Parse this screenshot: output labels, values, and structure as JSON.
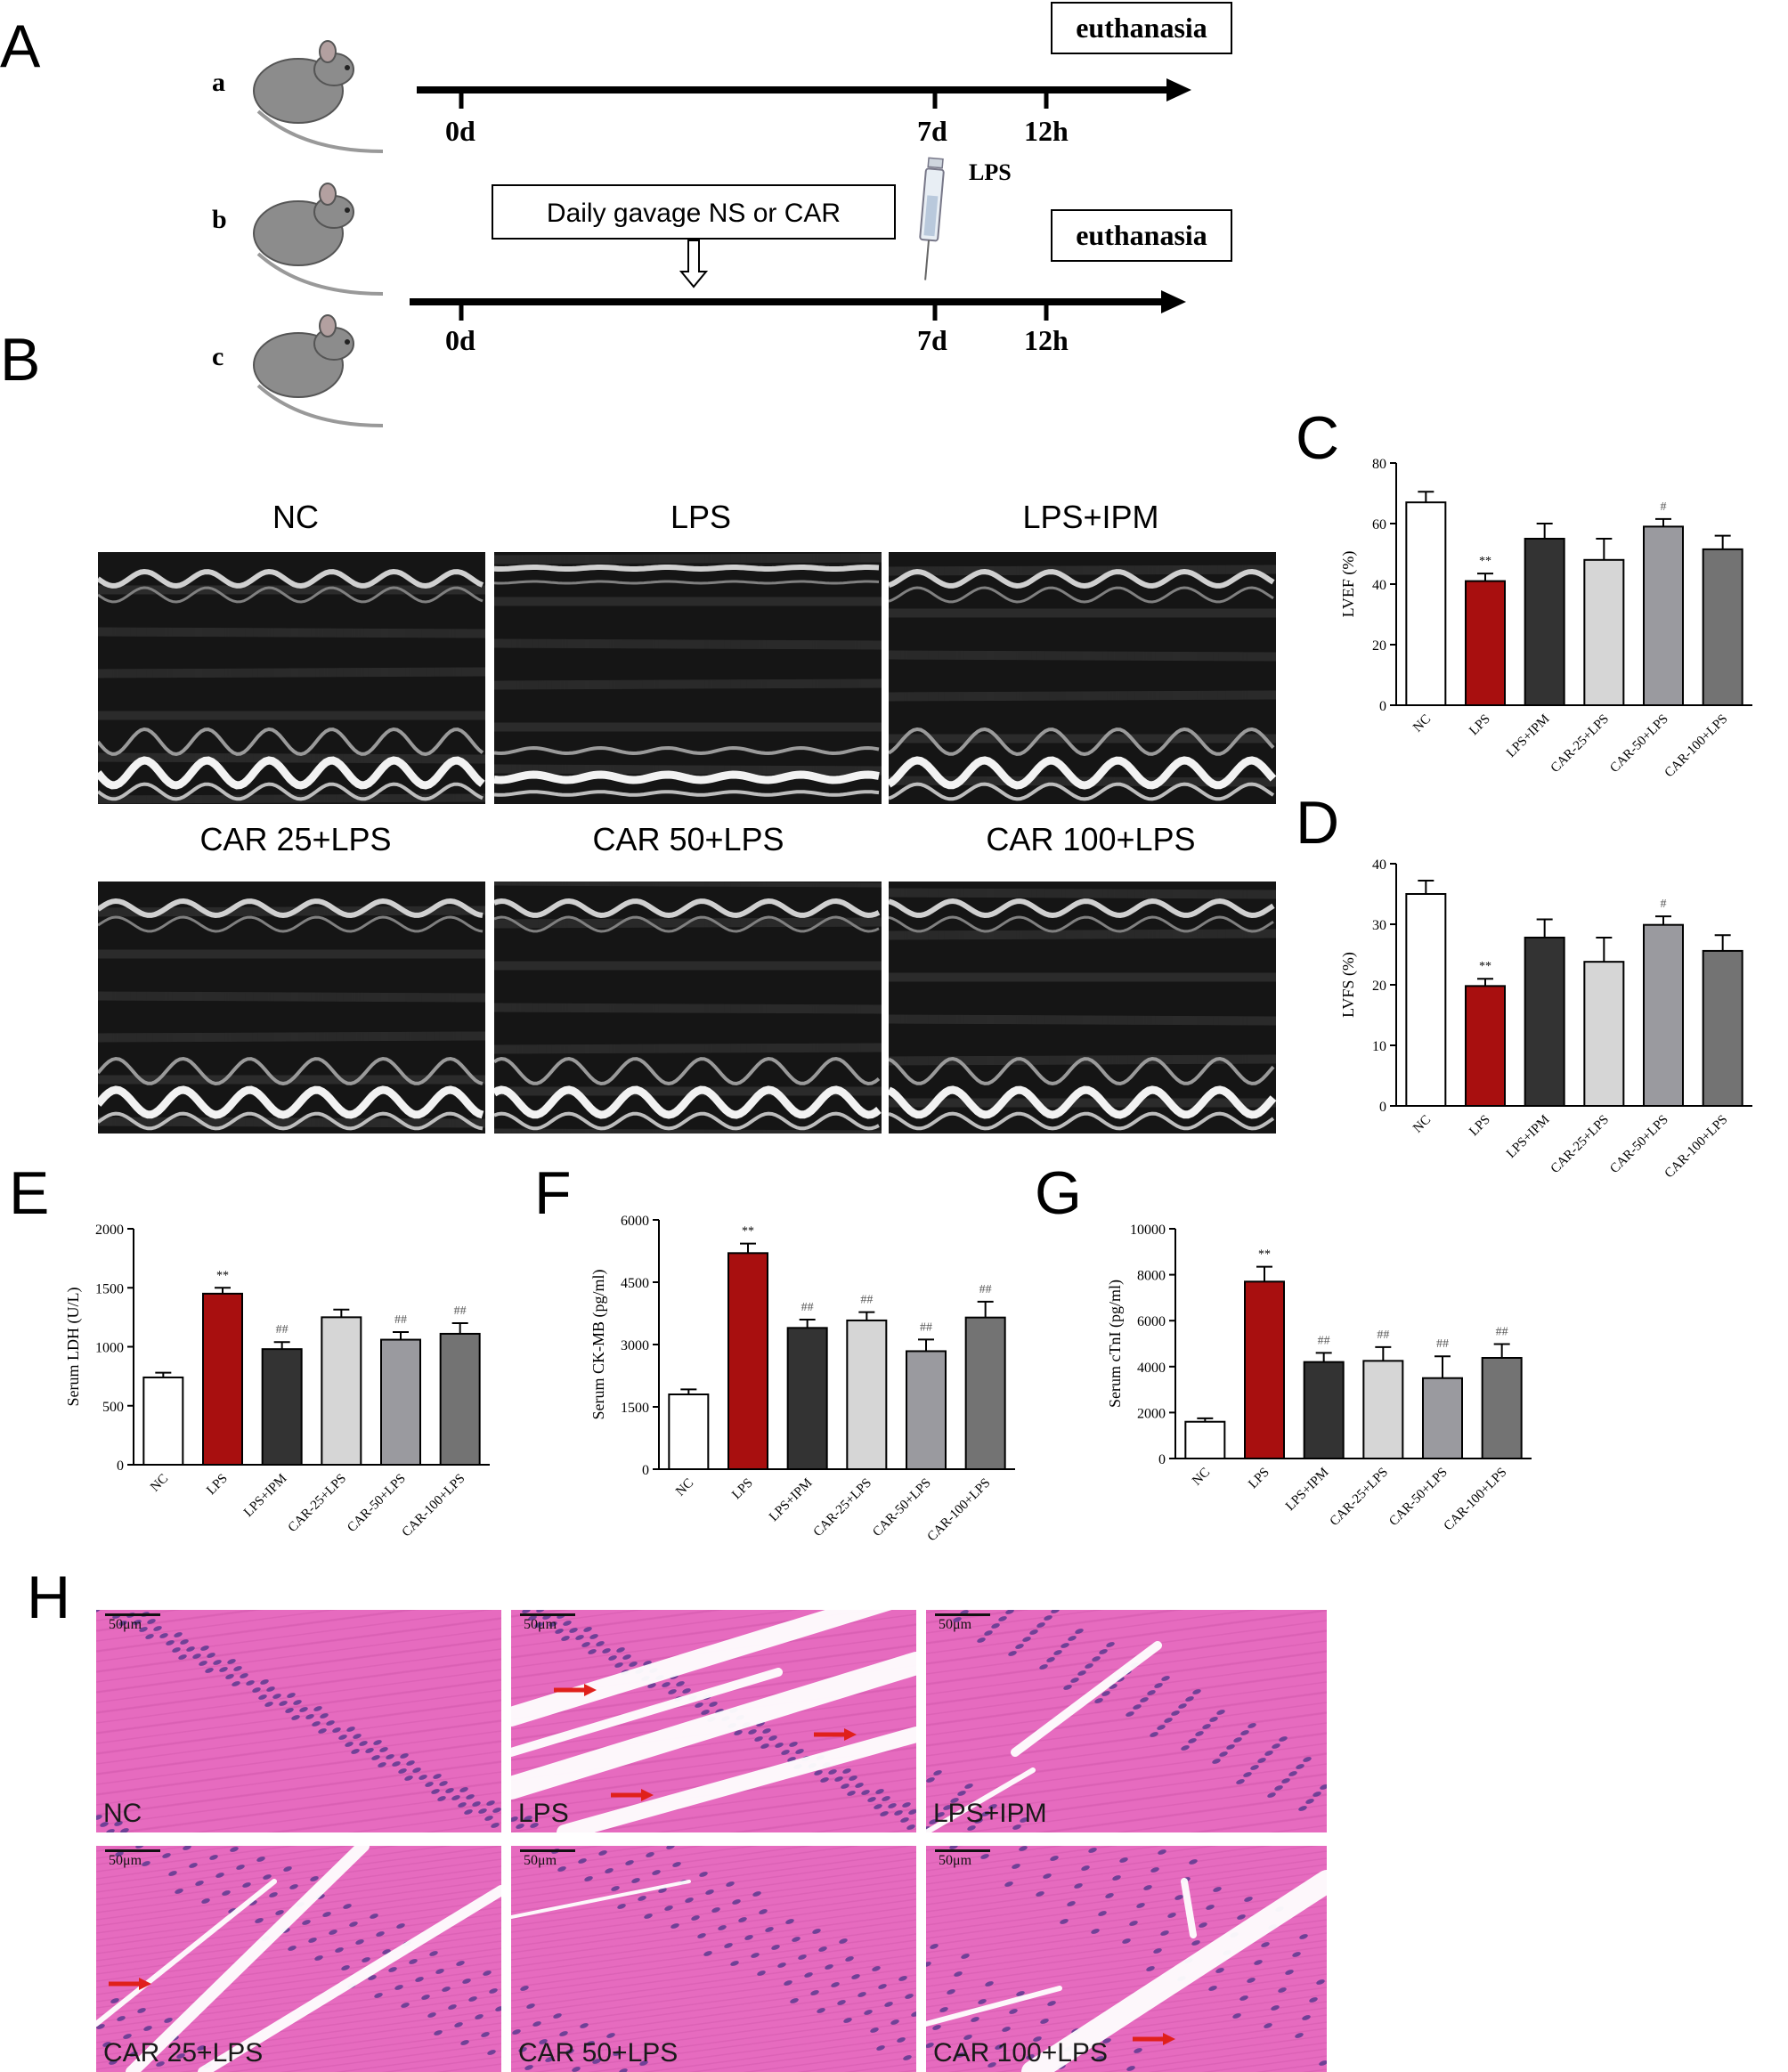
{
  "panels": {
    "A": "A",
    "B": "B",
    "C": "C",
    "D": "D",
    "E": "E",
    "F": "F",
    "G": "G",
    "H": "H"
  },
  "timeline": {
    "row_labels": [
      "a",
      "b",
      "c"
    ],
    "euthanasia": "euthanasia",
    "gavage_box": "Daily gavage NS or CAR",
    "lps_label": "LPS",
    "ticks": [
      "0d",
      "7d",
      "12h"
    ]
  },
  "echo": {
    "labels": [
      "NC",
      "LPS",
      "LPS+IPM",
      "CAR 25+LPS",
      "CAR 50+LPS",
      "CAR 100+LPS"
    ]
  },
  "histology": {
    "labels": [
      "NC",
      "LPS",
      "LPS+IPM",
      "CAR 25+LPS",
      "CAR 50+LPS",
      "CAR 100+LPS"
    ],
    "scale_bar": "50μm"
  },
  "colors": {
    "NC": "#ffffff",
    "LPS": "#a80f0f",
    "LPS+IPM": "#333333",
    "CAR-25+LPS": "#d6d6d6",
    "CAR-50+LPS": "#9a9a9f",
    "CAR-100+LPS": "#737373",
    "arrow": "#e0201b",
    "he_bg": "#e66bbf"
  },
  "chart_data": [
    {
      "id": "C",
      "type": "bar",
      "ylabel": "LVEF (%)",
      "ylim": [
        0,
        80
      ],
      "yticks": [
        0,
        20,
        40,
        60,
        80
      ],
      "categories": [
        "NC",
        "LPS",
        "LPS+IPM",
        "CAR-25+LPS",
        "CAR-50+LPS",
        "CAR-100+LPS"
      ],
      "values": [
        67,
        41,
        55,
        48,
        59,
        51.5
      ],
      "errors": [
        3.5,
        2.5,
        5,
        7,
        2.5,
        4.5
      ],
      "annotations": [
        "",
        "**",
        "",
        "",
        "#",
        ""
      ]
    },
    {
      "id": "D",
      "type": "bar",
      "ylabel": "LVFS (%)",
      "ylim": [
        0,
        40
      ],
      "yticks": [
        0,
        10,
        20,
        30,
        40
      ],
      "categories": [
        "NC",
        "LPS",
        "LPS+IPM",
        "CAR-25+LPS",
        "CAR-50+LPS",
        "CAR-100+LPS"
      ],
      "values": [
        35,
        19.8,
        27.8,
        23.8,
        29.9,
        25.6
      ],
      "errors": [
        2.2,
        1.2,
        3,
        4,
        1.4,
        2.6
      ],
      "annotations": [
        "",
        "**",
        "",
        "",
        "#",
        ""
      ]
    },
    {
      "id": "E",
      "type": "bar",
      "ylabel": "Serum LDH (U/L)",
      "ylim": [
        0,
        2000
      ],
      "yticks": [
        0,
        500,
        1000,
        1500,
        2000
      ],
      "categories": [
        "NC",
        "LPS",
        "LPS+IPM",
        "CAR-25+LPS",
        "CAR-50+LPS",
        "CAR-100+LPS"
      ],
      "values": [
        740,
        1450,
        980,
        1250,
        1060,
        1110
      ],
      "errors": [
        40,
        50,
        60,
        65,
        65,
        90
      ],
      "annotations": [
        "",
        "**",
        "##",
        "",
        "##",
        "##"
      ]
    },
    {
      "id": "F",
      "type": "bar",
      "ylabel": "Serum CK-MB (pg/ml)",
      "ylim": [
        0,
        6000
      ],
      "yticks": [
        0,
        1500,
        3000,
        4500,
        6000
      ],
      "categories": [
        "NC",
        "LPS",
        "LPS+IPM",
        "CAR-25+LPS",
        "CAR-50+LPS",
        "CAR-100+LPS"
      ],
      "values": [
        1800,
        5200,
        3400,
        3580,
        2840,
        3650
      ],
      "errors": [
        120,
        230,
        200,
        200,
        280,
        380
      ],
      "annotations": [
        "",
        "**",
        "##",
        "##",
        "##",
        "##"
      ]
    },
    {
      "id": "G",
      "type": "bar",
      "ylabel": "Serum cTnI (pg/ml)",
      "ylim": [
        0,
        10000
      ],
      "yticks": [
        0,
        2000,
        4000,
        6000,
        8000,
        10000
      ],
      "categories": [
        "NC",
        "LPS",
        "LPS+IPM",
        "CAR-25+LPS",
        "CAR-50+LPS",
        "CAR-100+LPS"
      ],
      "values": [
        1600,
        7700,
        4200,
        4250,
        3500,
        4380
      ],
      "errors": [
        150,
        650,
        400,
        600,
        950,
        600
      ],
      "annotations": [
        "",
        "**",
        "##",
        "##",
        "##",
        "##"
      ]
    }
  ]
}
